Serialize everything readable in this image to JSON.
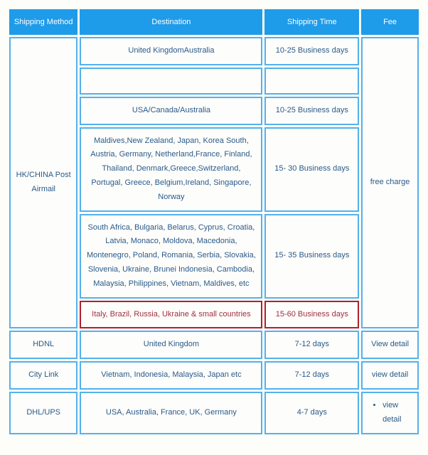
{
  "headers": {
    "method": "Shipping Method",
    "destination": "Destination",
    "time": "Shipping Time",
    "fee": "Fee"
  },
  "hkchina": {
    "method": "HK/CHINA Post Airmail",
    "fee": "free charge",
    "rows": [
      {
        "dest": "United KingdomAustralia",
        "time": "10-25 Business days"
      },
      {
        "dest": "",
        "time": ""
      },
      {
        "dest": "USA/Canada/Australia",
        "time": "10-25 Business days"
      },
      {
        "dest": "Maldives,New Zealand, Japan, Korea South, Austria, Germany, Netherland,France, Finland, Thailand, Denmark,Greece,Switzerland, Portugal, Greece, Belgium,Ireland, Singapore, Norway",
        "time": "15- 30 Business days"
      },
      {
        "dest": "South Africa, Bulgaria, Belarus, Cyprus, Croatia, Latvia, Monaco, Moldova, Macedonia, Montenegro, Poland, Romania, Serbia, Slovakia, Slovenia, Ukraine, Brunei Indonesia, Cambodia, Malaysia, Philippines, Vietnam, Maldives, etc",
        "time": "15- 35 Business days"
      },
      {
        "dest": "Italy, Brazil, Russia, Ukraine & small countries",
        "time": "15-60 Business days",
        "highlight": true
      }
    ]
  },
  "hdnl": {
    "method": "HDNL",
    "dest": "United Kingdom",
    "time": "7-12 days",
    "fee": "View detail"
  },
  "citylink": {
    "method": "City Link",
    "dest": "Vietnam, Indonesia, Malaysia, Japan etc",
    "time": "7-12 days",
    "fee": "view detail"
  },
  "dhlups": {
    "method": "DHL/UPS",
    "dest": "USA, Australia, France, UK, Germany",
    "time": "4-7 days",
    "fee": "view detail"
  }
}
